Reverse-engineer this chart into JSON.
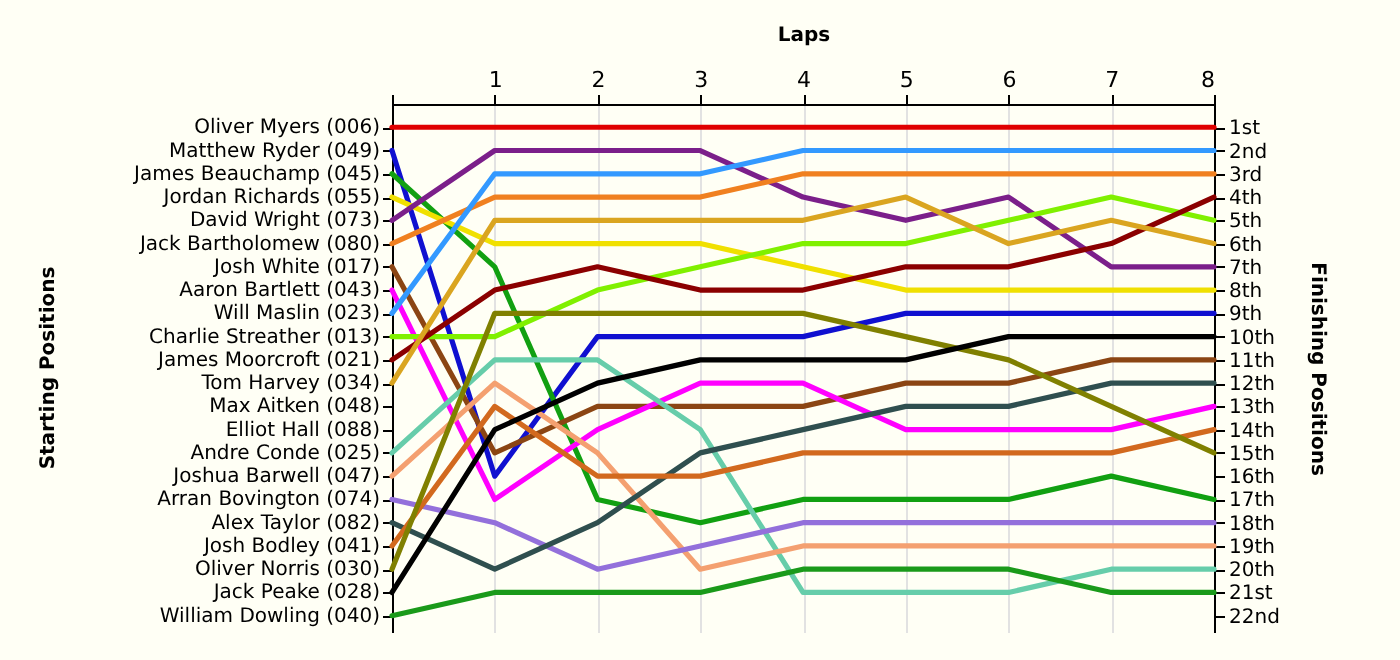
{
  "chart_data": {
    "type": "line",
    "xlabel": "Laps",
    "y2label": "Finishing Positions",
    "x": [
      0,
      1,
      2,
      3,
      4,
      5,
      6,
      7,
      8
    ],
    "xlim": [
      0,
      8
    ],
    "xticks": [
      {
        "value": 0,
        "label": null
      },
      1,
      2,
      3,
      4,
      5,
      6,
      7,
      8
    ],
    "y2lim": [
      22.7,
      0
    ],
    "y2ticks": [
      {
        "value": 1,
        "label": "1st"
      },
      {
        "value": 2,
        "label": "2nd"
      },
      {
        "value": 3,
        "label": "3rd"
      },
      {
        "value": 4,
        "label": "4th"
      },
      {
        "value": 5,
        "label": "5th"
      },
      {
        "value": 6,
        "label": "6th"
      },
      {
        "value": 7,
        "label": "7th"
      },
      {
        "value": 8,
        "label": "8th"
      },
      {
        "value": 9,
        "label": "9th"
      },
      {
        "value": 10,
        "label": "10th"
      },
      {
        "value": 11,
        "label": "11th"
      },
      {
        "value": 12,
        "label": "12th"
      },
      {
        "value": 13,
        "label": "13th"
      },
      {
        "value": 14,
        "label": "14th"
      },
      {
        "value": 15,
        "label": "15th"
      },
      {
        "value": 16,
        "label": "16th"
      },
      {
        "value": 17,
        "label": "17th"
      },
      {
        "value": 18,
        "label": "18th"
      },
      {
        "value": 19,
        "label": "19th"
      },
      {
        "value": 20,
        "label": "20th"
      },
      {
        "value": 21,
        "label": "21st"
      },
      {
        "value": 22,
        "label": "22nd"
      }
    ],
    "annotations": [
      "Starting Positions",
      "Oliver Myers (006)",
      "Matthew Ryder (049)",
      "James Beauchamp (045)",
      "Jordan Richards (055)",
      "David Wright (073)",
      "Jack Bartholomew (080)",
      "Josh White (017)",
      "Aaron Bartlett (043)",
      "Will Maslin (023)",
      "Charlie Streather (013)",
      "James Moorcroft (021)",
      "Tom Harvey (034)",
      "Max Aitken (048)",
      "Elliot Hall (088)",
      "Andre Conde (025)",
      "Joshua Barwell (047)",
      "Arran Bovington (074)",
      "Alex Taylor (082)",
      "Josh Bodley (041)",
      "Oliver Norris (030)",
      "Jack Peake (028)",
      "William Dowling (040)"
    ],
    "grid": true,
    "line_style": "solid",
    "series": [
      {
        "color": "#e00000",
        "axis": "y2",
        "values": [
          1,
          1,
          1,
          1,
          1,
          1,
          1,
          1,
          1
        ]
      },
      {
        "color": "#1010d0",
        "axis": "y2",
        "values": [
          2,
          16,
          10,
          10,
          10,
          9,
          9,
          9,
          9
        ]
      },
      {
        "color": "#11a011",
        "axis": "y2",
        "values": [
          3,
          7,
          17,
          18,
          17,
          17,
          17,
          16,
          17
        ]
      },
      {
        "color": "#f0e000",
        "axis": "y2",
        "values": [
          4,
          6,
          6,
          6,
          7,
          8,
          8,
          8,
          8
        ]
      },
      {
        "color": "#7b1f8a",
        "axis": "y2",
        "values": [
          5,
          2,
          2,
          2,
          4,
          5,
          4,
          7,
          7
        ]
      },
      {
        "color": "#f08020",
        "axis": "y2",
        "values": [
          6,
          4,
          4,
          4,
          3,
          3,
          3,
          3,
          3
        ]
      },
      {
        "color": "#8b4513",
        "axis": "y2",
        "values": [
          7,
          15,
          13,
          13,
          13,
          12,
          12,
          11,
          11
        ]
      },
      {
        "color": "#ff00ff",
        "axis": "y2",
        "values": [
          8,
          17,
          14,
          12,
          12,
          14,
          14,
          14,
          13
        ]
      },
      {
        "color": "#3399ff",
        "axis": "y2",
        "values": [
          9,
          3,
          3,
          3,
          2,
          2,
          2,
          2,
          2
        ]
      },
      {
        "color": "#80f000",
        "axis": "y2",
        "values": [
          10,
          10,
          8,
          7,
          6,
          6,
          5,
          4,
          5
        ]
      },
      {
        "color": "#8b0000",
        "axis": "y2",
        "values": [
          11,
          8,
          7,
          8,
          8,
          7,
          7,
          6,
          4
        ]
      },
      {
        "color": "#daa520",
        "axis": "y2",
        "values": [
          12,
          5,
          5,
          5,
          5,
          4,
          6,
          5,
          6
        ]
      },
      {
        "color": "#66cdaa",
        "axis": "y2",
        "values": [
          15,
          11,
          11,
          14,
          21,
          21,
          21,
          20,
          20
        ]
      },
      {
        "color": "#f4a070",
        "axis": "y2",
        "values": [
          16,
          12,
          15,
          20,
          19,
          19,
          19,
          19,
          19
        ]
      },
      {
        "color": "#9370db",
        "axis": "y2",
        "values": [
          17,
          18,
          20,
          19,
          18,
          18,
          18,
          18,
          18
        ]
      },
      {
        "color": "#2f4f4f",
        "axis": "y2",
        "values": [
          18,
          20,
          18,
          15,
          14,
          13,
          13,
          12,
          12
        ]
      },
      {
        "color": "#d2691e",
        "axis": "y2",
        "values": [
          19,
          13,
          16,
          16,
          15,
          15,
          15,
          15,
          14
        ]
      },
      {
        "color": "#808000",
        "axis": "y2",
        "values": [
          20,
          9,
          9,
          9,
          9,
          10,
          11,
          13,
          15
        ]
      },
      {
        "color": "#000000",
        "axis": "y2",
        "values": [
          21,
          14,
          12,
          11,
          11,
          11,
          10,
          10,
          10
        ]
      },
      {
        "color": "#1a9a1a",
        "axis": "y2",
        "values": [
          22,
          21,
          21,
          21,
          20,
          20,
          20,
          21,
          21
        ]
      }
    ]
  }
}
